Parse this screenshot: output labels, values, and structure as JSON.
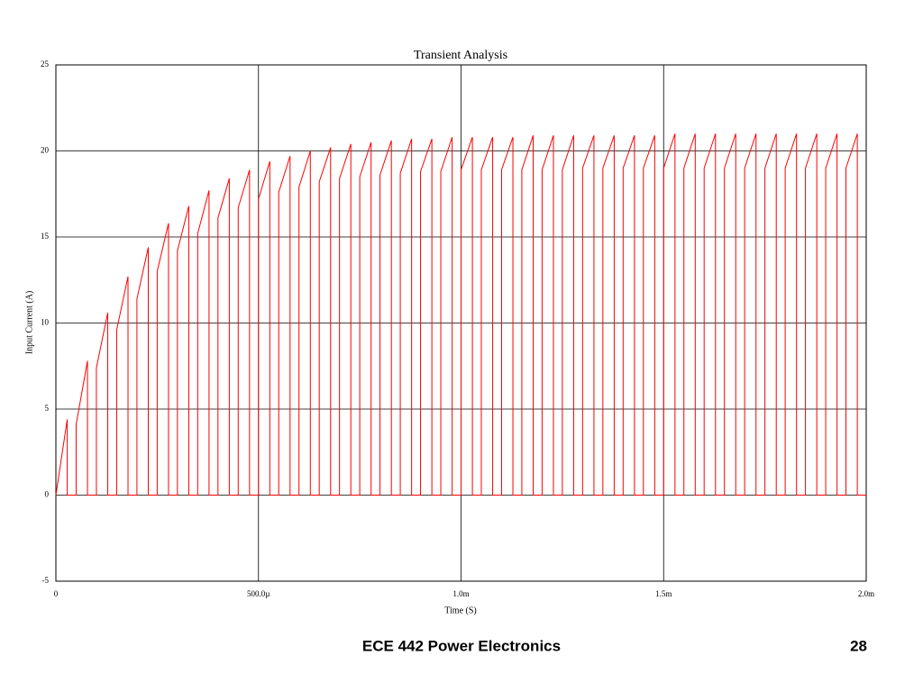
{
  "chart_data": {
    "type": "line",
    "title": "Transient Analysis",
    "xlabel": "Time (S)",
    "ylabel": "Input Current (A)",
    "color": "#ff0000",
    "grid": true,
    "xlim": [
      0,
      0.002
    ],
    "ylim": [
      -5,
      25
    ],
    "xticks": [
      0,
      {
        "value": 0.0005,
        "label": "500.0µ"
      },
      {
        "value": 0.001,
        "label": "1.0m"
      },
      {
        "value": 0.0015,
        "label": "1.5m"
      },
      {
        "value": 0.002,
        "label": "2.0m"
      }
    ],
    "yticks": [
      -5,
      0,
      5,
      10,
      15,
      20,
      25
    ],
    "x": [
      0,
      2.8e-05,
      2.8e-05,
      5e-05,
      5e-05,
      7.8e-05,
      7.8e-05,
      0.0001,
      0.0001,
      0.000128,
      0.000128,
      0.00015,
      0.00015,
      0.000178,
      0.000178,
      0.0002,
      0.0002,
      0.000228,
      0.000228,
      0.00025,
      0.00025,
      0.000278,
      0.000278,
      0.0003,
      0.0003,
      0.000328,
      0.000328,
      0.00035,
      0.00035,
      0.000378,
      0.000378,
      0.0004,
      0.0004,
      0.000428,
      0.000428,
      0.00045,
      0.00045,
      0.000478,
      0.000478,
      0.0005,
      0.0005,
      0.000528,
      0.000528,
      0.00055,
      0.00055,
      0.000578,
      0.000578,
      0.0006,
      0.0006,
      0.000628,
      0.000628,
      0.00065,
      0.00065,
      0.000678,
      0.000678,
      0.0007,
      0.0007,
      0.000728,
      0.000728,
      0.00075,
      0.00075,
      0.000778,
      0.000778,
      0.0008,
      0.0008,
      0.000828,
      0.000828,
      0.00085,
      0.00085,
      0.000878,
      0.000878,
      0.0009,
      0.0009,
      0.000928,
      0.000928,
      0.00095,
      0.00095,
      0.000978,
      0.000978,
      0.001,
      0.001,
      0.001028,
      0.001028,
      0.00105,
      0.00105,
      0.001078,
      0.001078,
      0.0011,
      0.0011,
      0.001128,
      0.001128,
      0.00115,
      0.00115,
      0.001178,
      0.001178,
      0.0012,
      0.0012,
      0.001228,
      0.001228,
      0.00125,
      0.00125,
      0.001278,
      0.001278,
      0.0013,
      0.0013,
      0.001328,
      0.001328,
      0.00135,
      0.00135,
      0.001378,
      0.001378,
      0.0014,
      0.0014,
      0.001428,
      0.001428,
      0.00145,
      0.00145,
      0.001478,
      0.001478,
      0.0015,
      0.0015,
      0.001528,
      0.001528,
      0.00155,
      0.00155,
      0.001578,
      0.001578,
      0.0016,
      0.0016,
      0.001628,
      0.001628,
      0.00165,
      0.00165,
      0.001678,
      0.001678,
      0.0017,
      0.0017,
      0.001728,
      0.001728,
      0.00175,
      0.00175,
      0.001778,
      0.001778,
      0.0018,
      0.0018,
      0.001828,
      0.001828,
      0.00185,
      0.00185,
      0.001878,
      0.001878,
      0.0019,
      0.0019,
      0.001928,
      0.001928,
      0.00195,
      0.00195,
      0.001978,
      0.001978,
      0.002
    ],
    "values": [
      0,
      4.4,
      0,
      0,
      4.1,
      7.8,
      0,
      0,
      7.4,
      10.6,
      0,
      0,
      9.6,
      12.7,
      0,
      0,
      11.4,
      14.4,
      0,
      0,
      13.0,
      15.8,
      0,
      0,
      14.2,
      16.8,
      0,
      0,
      15.2,
      17.7,
      0,
      0,
      16.1,
      18.4,
      0,
      0,
      16.7,
      18.9,
      0,
      0,
      17.2,
      19.4,
      0,
      0,
      17.6,
      19.7,
      0,
      0,
      17.9,
      20.0,
      0,
      0,
      18.2,
      20.2,
      0,
      0,
      18.4,
      20.4,
      0,
      0,
      18.5,
      20.5,
      0,
      0,
      18.6,
      20.6,
      0,
      0,
      18.7,
      20.7,
      0,
      0,
      18.8,
      20.7,
      0,
      0,
      18.8,
      20.8,
      0,
      0,
      18.9,
      20.8,
      0,
      0,
      18.9,
      20.8,
      0,
      0,
      18.9,
      20.8,
      0,
      0,
      18.9,
      20.9,
      0,
      0,
      18.9,
      20.9,
      0,
      0,
      18.9,
      20.9,
      0,
      0,
      19.0,
      20.9,
      0,
      0,
      19.0,
      20.9,
      0,
      0,
      19.0,
      20.9,
      0,
      0,
      19.0,
      20.9,
      0,
      0,
      19.0,
      21.0,
      0,
      0,
      19.0,
      21.0,
      0,
      0,
      19.0,
      21.0,
      0,
      0,
      19.0,
      21.0,
      0,
      0,
      19.0,
      21.0,
      0,
      0,
      19.0,
      21.0,
      0,
      0,
      19.0,
      21.0,
      0,
      0,
      19.0,
      21.0,
      0,
      0,
      19.0,
      21.0,
      0,
      0,
      19.0,
      21.0,
      0,
      0
    ]
  },
  "footer": {
    "text": "ECE 442 Power Electronics",
    "page_number": 28
  }
}
